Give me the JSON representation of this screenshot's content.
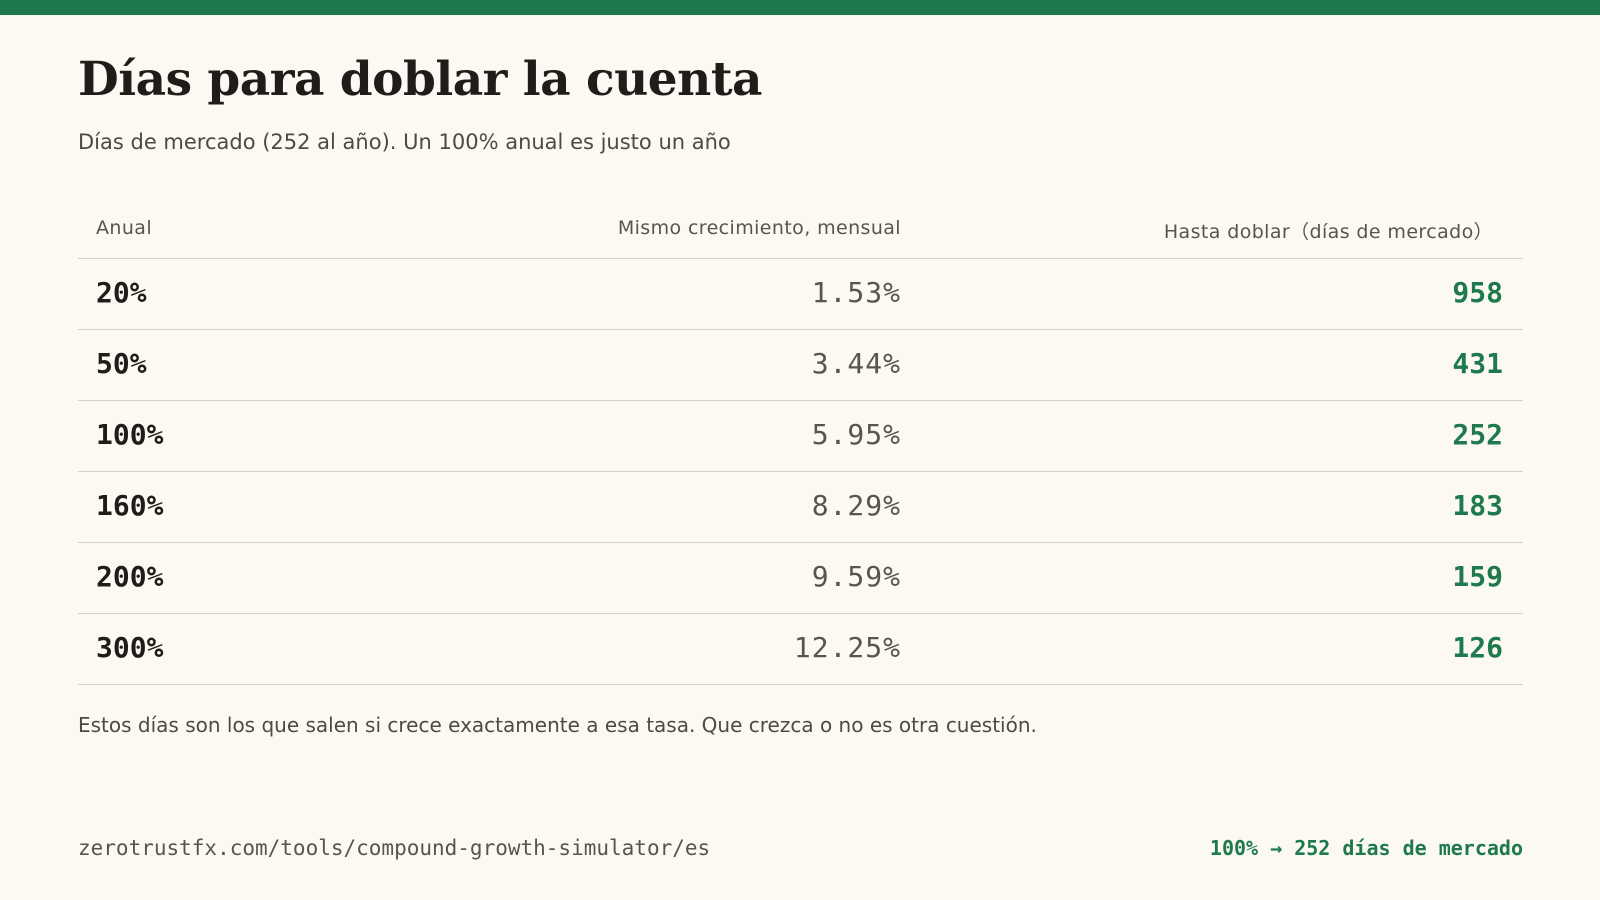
{
  "header": {
    "title": "Días para doblar la cuenta",
    "subtitle": "Días de mercado (252 al año). Un 100% anual es justo un año"
  },
  "table": {
    "columns": {
      "annual": "Anual",
      "monthly": "Mismo crecimiento, mensual",
      "days": "Hasta doblar（días de mercado）"
    },
    "rows": [
      {
        "annual": "20%",
        "monthly": "1.53%",
        "days": "958"
      },
      {
        "annual": "50%",
        "monthly": "3.44%",
        "days": "431"
      },
      {
        "annual": "100%",
        "monthly": "5.95%",
        "days": "252"
      },
      {
        "annual": "160%",
        "monthly": "8.29%",
        "days": "183"
      },
      {
        "annual": "200%",
        "monthly": "9.59%",
        "days": "159"
      },
      {
        "annual": "300%",
        "monthly": "12.25%",
        "days": "126"
      }
    ]
  },
  "note": "Estos días son los que salen si crece exactamente a esa tasa. Que crezca o no es otra cuestión.",
  "footer": {
    "url": "zerotrustfx.com/tools/compound-growth-simulator/es",
    "callout": "100% → 252 días de mercado"
  },
  "colors": {
    "accent": "#1e7a4d",
    "background": "#fbf9f1",
    "text": "#1f1d19",
    "muted": "#5a554c"
  }
}
